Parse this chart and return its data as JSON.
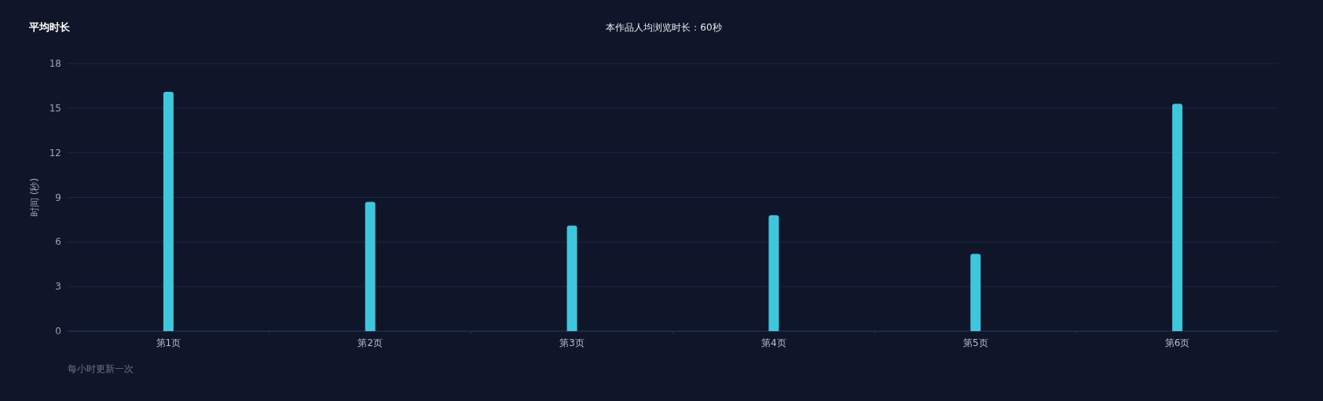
{
  "chart_data": {
    "type": "bar",
    "title": "平均时长",
    "subtitle": "本作品人均浏览时长：60秒",
    "ylabel": "时间 (秒)",
    "annotations": [
      "每小时更新一次"
    ],
    "categories": [
      "第1页",
      "第2页",
      "第3页",
      "第4页",
      "第5页",
      "第6页"
    ],
    "values": [
      16.1,
      8.7,
      7.1,
      7.8,
      5.2,
      15.3
    ],
    "color": "#3ec6dc",
    "ylim": [
      0,
      18
    ],
    "yticks": [
      0,
      3,
      6,
      9,
      12,
      15,
      18
    ],
    "grid": "y"
  }
}
